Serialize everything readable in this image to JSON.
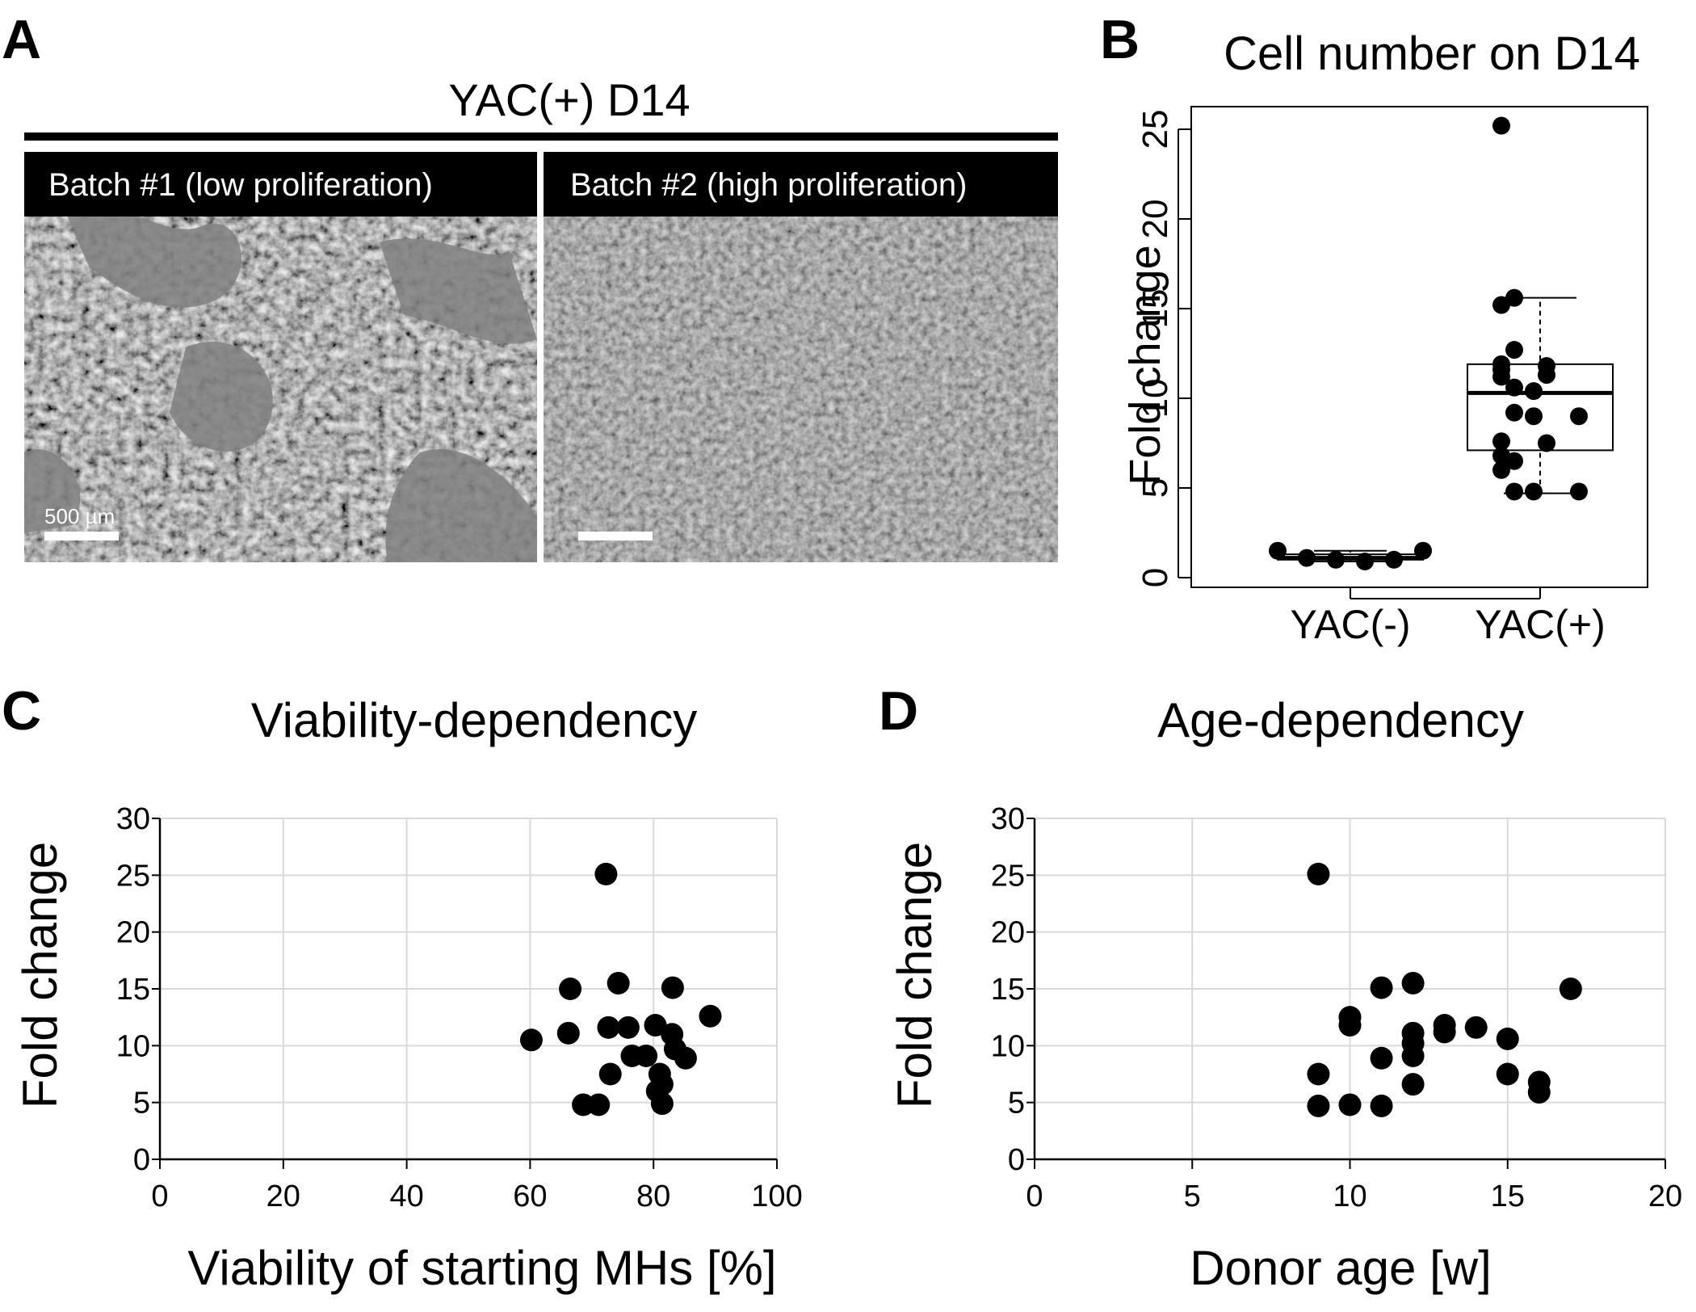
{
  "panels": {
    "A": {
      "letter": "A",
      "header": "YAC(+) D14",
      "images": [
        {
          "label": "Batch #1 (low proliferation)",
          "scale_bar": "500 µm"
        },
        {
          "label": "Batch #2 (high proliferation)",
          "scale_bar": ""
        }
      ]
    },
    "B": {
      "letter": "B"
    },
    "C": {
      "letter": "C"
    },
    "D": {
      "letter": "D"
    }
  },
  "chart_data": [
    {
      "type": "box",
      "title": "Cell number on D14",
      "xlabel": "",
      "ylabel": "Fold change",
      "ylim": [
        0,
        26
      ],
      "yticks": [
        0,
        5,
        10,
        15,
        20,
        25
      ],
      "grid": false,
      "categories": [
        "YAC(-)",
        "YAC(+)"
      ],
      "groups": [
        {
          "name": "YAC(-)",
          "box": {
            "q1": 1.0,
            "median": 1.1,
            "q3": 1.3,
            "whisker_low": 0.9,
            "whisker_high": 1.5
          },
          "points": [
            1.5,
            1.1,
            1.0,
            0.9,
            1.0,
            1.5
          ]
        },
        {
          "name": "YAC(+)",
          "box": {
            "q1": 7.1,
            "median": 10.3,
            "q3": 11.9,
            "whisker_low": 4.7,
            "whisker_high": 15.6
          },
          "points": [
            25.2,
            15.6,
            15.2,
            12.7,
            11.9,
            11.8,
            11.6,
            11.3,
            11.2,
            10.6,
            10.4,
            9.2,
            9.0,
            9.0,
            7.6,
            7.5,
            6.8,
            6.5,
            6.0,
            4.8,
            4.8,
            4.8
          ]
        }
      ]
    },
    {
      "type": "scatter",
      "title": "Viability-dependency",
      "xlabel": "Viability of starting MHs [%]",
      "ylabel": "Fold change",
      "xlim": [
        0,
        100
      ],
      "ylim": [
        0,
        30
      ],
      "xticks": [
        0,
        20,
        40,
        60,
        80,
        100
      ],
      "yticks": [
        0,
        5,
        10,
        15,
        20,
        25,
        30
      ],
      "grid": true,
      "points": [
        {
          "x": 72.3,
          "y": 25.1
        },
        {
          "x": 74.3,
          "y": 15.5
        },
        {
          "x": 66.5,
          "y": 15.0
        },
        {
          "x": 83.1,
          "y": 15.1
        },
        {
          "x": 89.2,
          "y": 12.6
        },
        {
          "x": 80.3,
          "y": 11.8
        },
        {
          "x": 72.7,
          "y": 11.6
        },
        {
          "x": 75.9,
          "y": 11.6
        },
        {
          "x": 66.2,
          "y": 11.1
        },
        {
          "x": 83.0,
          "y": 11.0
        },
        {
          "x": 60.2,
          "y": 10.5
        },
        {
          "x": 83.5,
          "y": 9.7
        },
        {
          "x": 76.5,
          "y": 9.1
        },
        {
          "x": 78.8,
          "y": 9.1
        },
        {
          "x": 85.2,
          "y": 8.9
        },
        {
          "x": 81.0,
          "y": 7.5
        },
        {
          "x": 73.0,
          "y": 7.5
        },
        {
          "x": 81.4,
          "y": 6.6
        },
        {
          "x": 80.6,
          "y": 6.0
        },
        {
          "x": 68.6,
          "y": 4.8
        },
        {
          "x": 71.1,
          "y": 4.8
        },
        {
          "x": 81.4,
          "y": 4.9
        }
      ]
    },
    {
      "type": "scatter",
      "title": "Age-dependency",
      "xlabel": "Donor age [w]",
      "ylabel": "Fold change",
      "xlim": [
        0,
        20
      ],
      "ylim": [
        0,
        30
      ],
      "xticks": [
        0,
        5,
        10,
        15,
        20
      ],
      "yticks": [
        0,
        5,
        10,
        15,
        20,
        25,
        30
      ],
      "grid": true,
      "points": [
        {
          "x": 9,
          "y": 25.1
        },
        {
          "x": 12,
          "y": 15.5
        },
        {
          "x": 11,
          "y": 15.1
        },
        {
          "x": 17,
          "y": 15.0
        },
        {
          "x": 10,
          "y": 12.5
        },
        {
          "x": 13,
          "y": 11.8
        },
        {
          "x": 10,
          "y": 11.8
        },
        {
          "x": 14,
          "y": 11.6
        },
        {
          "x": 13,
          "y": 11.2
        },
        {
          "x": 12,
          "y": 11.1
        },
        {
          "x": 12,
          "y": 10.2
        },
        {
          "x": 15,
          "y": 10.6
        },
        {
          "x": 12,
          "y": 9.1
        },
        {
          "x": 11,
          "y": 8.9
        },
        {
          "x": 9,
          "y": 7.5
        },
        {
          "x": 15,
          "y": 7.5
        },
        {
          "x": 16,
          "y": 6.8
        },
        {
          "x": 12,
          "y": 6.6
        },
        {
          "x": 16,
          "y": 5.9
        },
        {
          "x": 9,
          "y": 4.7
        },
        {
          "x": 10,
          "y": 4.8
        },
        {
          "x": 11,
          "y": 4.7
        }
      ]
    }
  ]
}
